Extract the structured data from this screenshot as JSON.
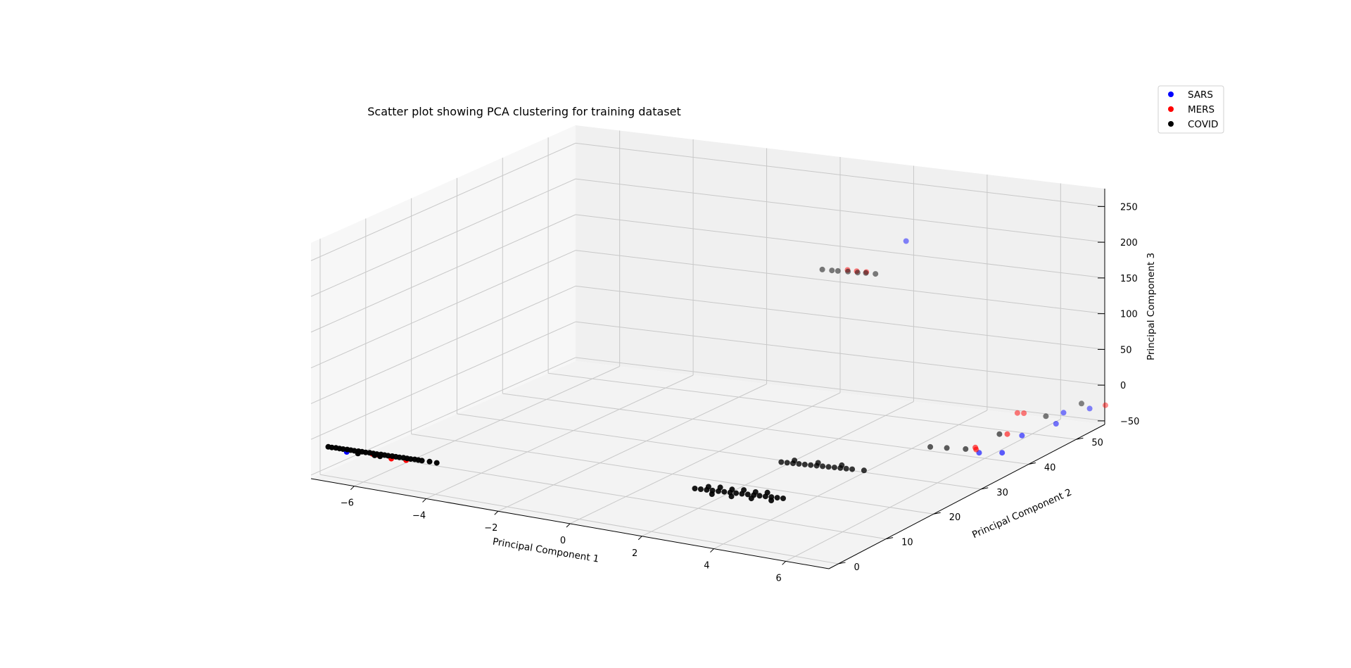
{
  "chart_data": {
    "type": "scatter",
    "projection": "3d",
    "title": "Scatter plot showing PCA clustering for training dataset",
    "xlabel": "Principal Component 1",
    "ylabel": "Principal Component 2",
    "zlabel": "Principal Component 3",
    "xlim": [
      -7.2,
      7.2
    ],
    "ylim": [
      -2,
      56
    ],
    "zlim": [
      -55,
      275
    ],
    "xticks": [
      "−6",
      "−4",
      "−2",
      "0",
      "2",
      "4",
      "6"
    ],
    "yticks": [
      "0",
      "10",
      "20",
      "30",
      "40",
      "50"
    ],
    "zticks": [
      "−50",
      "0",
      "50",
      "100",
      "150",
      "200",
      "250"
    ],
    "grid": true,
    "legend_position": "top-right",
    "series": [
      {
        "name": "SARS",
        "color": "#0000ff",
        "points": [
          [
            -6.5,
            0.3,
            -18
          ],
          [
            2.1,
            53.6,
            178
          ],
          [
            6.3,
            36.5,
            -33
          ],
          [
            6.8,
            37.5,
            -33
          ],
          [
            6.9,
            40.9,
            -20
          ],
          [
            6.7,
            51.2,
            -25
          ],
          [
            7.0,
            47.3,
            -25
          ],
          [
            7.1,
            53.6,
            -25
          ]
        ]
      },
      {
        "name": "MERS",
        "color": "#ff0000",
        "points": [
          [
            -5.8,
            0.4,
            -15
          ],
          [
            -5.65,
            0.4,
            -15
          ],
          [
            -5.3,
            0.6,
            -18
          ],
          [
            -4.9,
            0.7,
            -17
          ],
          [
            0.9,
            50.5,
            140
          ],
          [
            1.15,
            50.5,
            140
          ],
          [
            1.4,
            50.6,
            140
          ],
          [
            6.0,
            38.0,
            -33
          ],
          [
            6.1,
            37.4,
            -33
          ],
          [
            6.55,
            40.5,
            -19
          ],
          [
            5.7,
            49.2,
            -25
          ],
          [
            5.85,
            49.4,
            -25
          ],
          [
            7.4,
            54.6,
            -22
          ]
        ]
      },
      {
        "name": "COVID",
        "color": "#000000",
        "points": [
          [
            -7.0,
            0.2,
            -15
          ],
          [
            -6.9,
            0.2,
            -15
          ],
          [
            -6.8,
            0.3,
            -15
          ],
          [
            -6.7,
            0.3,
            -15
          ],
          [
            -6.6,
            0.3,
            -15
          ],
          [
            -6.5,
            0.4,
            -15
          ],
          [
            -6.4,
            0.4,
            -15
          ],
          [
            -6.3,
            0.4,
            -15
          ],
          [
            -6.2,
            0.5,
            -15
          ],
          [
            -6.1,
            0.5,
            -15
          ],
          [
            -6.0,
            0.5,
            -15
          ],
          [
            -5.9,
            0.6,
            -15
          ],
          [
            -5.8,
            0.6,
            -15
          ],
          [
            -5.7,
            0.6,
            -15
          ],
          [
            -5.6,
            0.7,
            -15
          ],
          [
            -5.5,
            0.7,
            -15
          ],
          [
            -5.4,
            0.7,
            -15
          ],
          [
            -5.3,
            0.8,
            -15
          ],
          [
            -5.2,
            0.8,
            -15
          ],
          [
            -5.1,
            0.8,
            -15
          ],
          [
            -5.0,
            0.9,
            -15
          ],
          [
            -4.9,
            0.9,
            -15
          ],
          [
            -4.8,
            0.9,
            -15
          ],
          [
            -4.7,
            1.0,
            -15
          ],
          [
            -4.6,
            1.0,
            -15
          ],
          [
            -4.5,
            1.0,
            -15
          ],
          [
            -4.3,
            1.1,
            -15
          ],
          [
            -4.1,
            1.1,
            -15
          ],
          [
            -6.2,
            0.4,
            -18
          ],
          [
            -5.75,
            0.5,
            -17
          ],
          [
            -5.6,
            0.5,
            -17
          ],
          [
            0.3,
            49.8,
            139
          ],
          [
            0.55,
            49.9,
            139
          ],
          [
            0.7,
            50.0,
            139
          ],
          [
            0.95,
            50.2,
            139
          ],
          [
            1.2,
            50.3,
            139
          ],
          [
            1.4,
            50.5,
            139
          ],
          [
            1.65,
            50.6,
            139
          ],
          [
            2.3,
            7.0,
            -15
          ],
          [
            2.45,
            7.1,
            -15
          ],
          [
            2.6,
            7.2,
            -15
          ],
          [
            2.75,
            7.3,
            -15
          ],
          [
            2.9,
            7.4,
            -15
          ],
          [
            3.05,
            7.5,
            -15
          ],
          [
            3.2,
            7.6,
            -15
          ],
          [
            3.35,
            7.7,
            -15
          ],
          [
            3.5,
            7.8,
            -15
          ],
          [
            3.65,
            7.9,
            -15
          ],
          [
            3.8,
            8.0,
            -15
          ],
          [
            3.95,
            8.1,
            -15
          ],
          [
            4.1,
            8.2,
            -15
          ],
          [
            4.25,
            8.3,
            -15
          ],
          [
            4.4,
            8.4,
            -15
          ],
          [
            4.55,
            8.5,
            -15
          ],
          [
            2.6,
            7.6,
            -12
          ],
          [
            2.9,
            7.8,
            -11
          ],
          [
            3.2,
            8.0,
            -12
          ],
          [
            3.5,
            8.2,
            -11
          ],
          [
            3.8,
            8.4,
            -12
          ],
          [
            4.1,
            8.6,
            -11
          ],
          [
            2.8,
            6.8,
            -18
          ],
          [
            3.3,
            7.1,
            -18
          ],
          [
            3.8,
            7.5,
            -18
          ],
          [
            4.3,
            7.9,
            -18
          ],
          [
            3.0,
            20.0,
            -15
          ],
          [
            3.15,
            20.1,
            -15
          ],
          [
            3.3,
            20.2,
            -15
          ],
          [
            3.45,
            20.3,
            -15
          ],
          [
            3.6,
            20.4,
            -15
          ],
          [
            3.75,
            20.5,
            -15
          ],
          [
            3.9,
            20.6,
            -15
          ],
          [
            4.05,
            20.7,
            -15
          ],
          [
            4.2,
            20.8,
            -15
          ],
          [
            4.35,
            20.9,
            -15
          ],
          [
            4.5,
            21.0,
            -15
          ],
          [
            4.65,
            21.1,
            -15
          ],
          [
            4.8,
            21.2,
            -15
          ],
          [
            5.1,
            21.4,
            -15
          ],
          [
            3.3,
            20.5,
            -12
          ],
          [
            3.9,
            20.9,
            -12
          ],
          [
            4.5,
            21.3,
            -12
          ],
          [
            5.0,
            36.2,
            -33
          ],
          [
            5.4,
            36.6,
            -33
          ],
          [
            5.85,
            37.1,
            -33
          ],
          [
            6.35,
            40.4,
            -20
          ],
          [
            6.8,
            54.2,
            -22
          ],
          [
            6.4,
            49.8,
            -27
          ]
        ]
      }
    ]
  }
}
